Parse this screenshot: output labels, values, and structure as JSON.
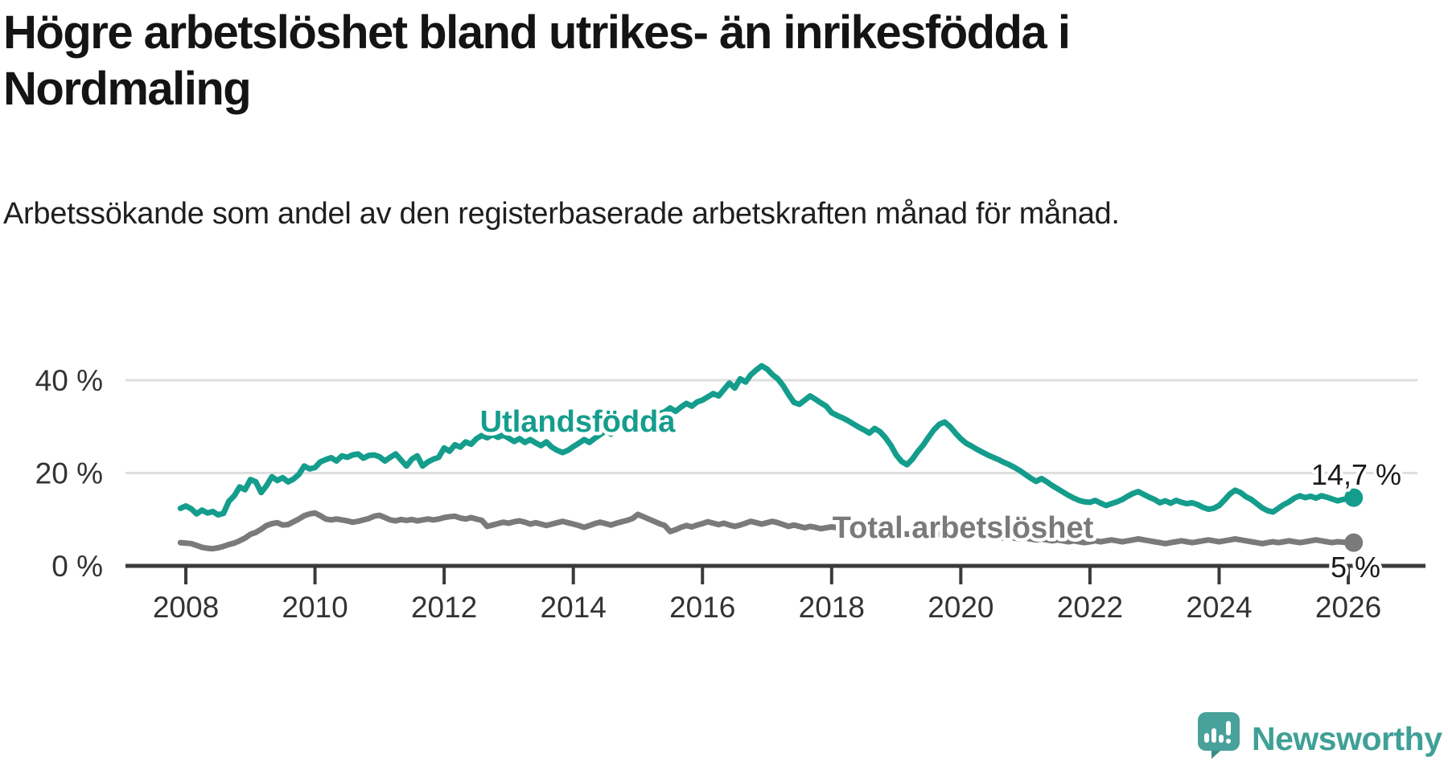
{
  "header": {
    "title": "Högre arbetslöshet bland utrikes- än inrikesfödda i Nordmaling",
    "subtitle": "Arbetssökande som andel av den registerbaserade arbetskraften månad för månad."
  },
  "colors": {
    "background": "#FFFFFF",
    "grid": "#DEDEDE",
    "axis": "#3A3A3A",
    "tick_label": "#333333",
    "value_label": "#1A1A1A",
    "teal": "#149D8C",
    "gray": "#7A7A7A",
    "logo": "#3FA096"
  },
  "branding": {
    "name": "Newsworthy"
  },
  "chart_data": {
    "type": "line",
    "unit": "%",
    "grid": "horizontal-only",
    "legend_position": "inline-labels",
    "x_axis": {
      "tick_years": [
        2008,
        2010,
        2012,
        2014,
        2016,
        2018,
        2020,
        2022,
        2024,
        2026
      ],
      "tick_labels": [
        "2008",
        "2010",
        "2012",
        "2014",
        "2016",
        "2018",
        "2020",
        "2022",
        "2024",
        "2026"
      ],
      "range_years": [
        2007.9,
        2026.2
      ]
    },
    "y_axis": {
      "ticks": [
        0,
        20,
        40
      ],
      "tick_labels": [
        "0 %",
        "20 %",
        "40 %"
      ],
      "gridline_values": [
        20,
        40
      ],
      "range": [
        0,
        45
      ]
    },
    "series": [
      {
        "id": "utlandsfodda",
        "label": "Utlandsfödda",
        "color": "#149D8C",
        "end_label": "14,7 %",
        "end_value": 14.7,
        "start": {
          "year": 2007,
          "month": 12
        },
        "interval_months": 1,
        "values": [
          12.4,
          12.9,
          12.3,
          11.2,
          12.0,
          11.4,
          11.7,
          11.0,
          11.3,
          13.9,
          15.1,
          17.0,
          16.4,
          18.6,
          18.1,
          15.8,
          17.3,
          19.2,
          18.4,
          19.0,
          18.1,
          18.7,
          19.7,
          21.5,
          20.9,
          21.2,
          22.4,
          22.9,
          23.3,
          22.6,
          23.7,
          23.4,
          23.9,
          24.1,
          23.2,
          23.8,
          23.9,
          23.5,
          22.6,
          23.4,
          24.1,
          22.8,
          21.5,
          23.0,
          23.7,
          21.5,
          22.4,
          23.0,
          23.4,
          25.4,
          24.7,
          26.1,
          25.6,
          26.7,
          26.2,
          27.4,
          28.1,
          27.6,
          28.3,
          27.7,
          28.2,
          27.5,
          26.8,
          27.4,
          26.6,
          27.2,
          26.5,
          25.9,
          26.7,
          25.6,
          24.9,
          24.4,
          24.9,
          25.7,
          26.4,
          27.2,
          26.6,
          27.5,
          28.3,
          29.1,
          28.4,
          29.3,
          30.1,
          30.8,
          30.2,
          31.0,
          31.8,
          32.5,
          31.9,
          32.8,
          33.2,
          34.0,
          33.3,
          34.2,
          35.0,
          34.4,
          35.3,
          35.7,
          36.4,
          37.1,
          36.6,
          38.0,
          39.4,
          38.3,
          40.3,
          39.6,
          41.2,
          42.2,
          43.1,
          42.4,
          41.2,
          40.3,
          38.8,
          36.9,
          35.2,
          34.8,
          35.7,
          36.6,
          35.9,
          35.1,
          34.4,
          33.0,
          32.4,
          31.9,
          31.3,
          30.6,
          29.9,
          29.3,
          28.6,
          29.6,
          28.9,
          27.6,
          26.0,
          23.9,
          22.5,
          21.8,
          23.0,
          24.6,
          26.0,
          27.7,
          29.3,
          30.5,
          31.0,
          30.0,
          28.6,
          27.4,
          26.4,
          25.8,
          25.1,
          24.5,
          23.9,
          23.4,
          22.9,
          22.3,
          21.8,
          21.2,
          20.5,
          19.7,
          18.9,
          18.2,
          18.8,
          18.1,
          17.3,
          16.6,
          15.9,
          15.2,
          14.6,
          14.1,
          13.8,
          13.7,
          14.1,
          13.5,
          13.0,
          13.4,
          13.8,
          14.3,
          15.0,
          15.6,
          16.0,
          15.4,
          14.8,
          14.3,
          13.6,
          14.0,
          13.5,
          14.1,
          13.7,
          13.4,
          13.6,
          13.2,
          12.6,
          12.2,
          12.4,
          13.0,
          14.2,
          15.5,
          16.3,
          15.8,
          14.9,
          14.3,
          13.4,
          12.5,
          11.9,
          11.6,
          12.4,
          13.2,
          13.8,
          14.6,
          15.1,
          14.7,
          15.0,
          14.6,
          15.1,
          14.8,
          14.4,
          14.0,
          14.3,
          14.5,
          14.7
        ]
      },
      {
        "id": "total",
        "label": "Total arbetslöshet",
        "color": "#7A7A7A",
        "end_label": "5 %",
        "end_value": 5.0,
        "start": {
          "year": 2007,
          "month": 12
        },
        "interval_months": 1,
        "values": [
          5.0,
          4.9,
          4.8,
          4.4,
          4.0,
          3.8,
          3.7,
          3.9,
          4.2,
          4.6,
          4.9,
          5.4,
          6.0,
          6.8,
          7.2,
          7.9,
          8.7,
          9.1,
          9.3,
          8.8,
          8.9,
          9.5,
          10.1,
          10.8,
          11.2,
          11.4,
          10.8,
          10.1,
          9.9,
          10.1,
          9.9,
          9.7,
          9.4,
          9.6,
          9.9,
          10.2,
          10.7,
          10.9,
          10.4,
          9.9,
          9.7,
          10.0,
          9.8,
          10.0,
          9.7,
          9.9,
          10.1,
          9.9,
          10.1,
          10.4,
          10.6,
          10.7,
          10.3,
          10.1,
          10.4,
          10.1,
          9.8,
          8.5,
          8.8,
          9.1,
          9.4,
          9.2,
          9.5,
          9.7,
          9.4,
          9.0,
          9.3,
          9.0,
          8.7,
          9.0,
          9.3,
          9.6,
          9.3,
          9.0,
          8.7,
          8.3,
          8.7,
          9.1,
          9.4,
          9.1,
          8.8,
          9.2,
          9.5,
          9.8,
          10.2,
          11.1,
          10.6,
          10.1,
          9.6,
          9.1,
          8.7,
          7.4,
          7.8,
          8.3,
          8.7,
          8.4,
          8.8,
          9.1,
          9.5,
          9.2,
          8.9,
          9.2,
          8.8,
          8.5,
          8.8,
          9.2,
          9.6,
          9.3,
          9.0,
          9.3,
          9.6,
          9.3,
          8.9,
          8.5,
          8.8,
          8.5,
          8.2,
          8.5,
          8.3,
          8.0,
          8.2,
          8.4,
          8.2,
          7.9,
          8.1,
          7.8,
          7.6,
          7.8,
          7.5,
          7.3,
          7.5,
          7.2,
          7.0,
          7.2,
          7.0,
          6.8,
          7.0,
          7.2,
          7.0,
          6.8,
          6.6,
          6.8,
          6.6,
          6.4,
          6.6,
          6.8,
          7.0,
          7.2,
          7.0,
          6.8,
          6.6,
          6.4,
          6.2,
          6.0,
          6.2,
          6.0,
          5.8,
          6.0,
          5.8,
          5.6,
          5.8,
          5.6,
          5.4,
          5.6,
          5.4,
          5.2,
          5.4,
          5.2,
          5.0,
          5.2,
          5.4,
          5.2,
          5.4,
          5.6,
          5.4,
          5.2,
          5.4,
          5.6,
          5.8,
          5.6,
          5.4,
          5.2,
          5.0,
          4.8,
          5.0,
          5.2,
          5.4,
          5.2,
          5.0,
          5.2,
          5.4,
          5.6,
          5.4,
          5.2,
          5.4,
          5.6,
          5.8,
          5.6,
          5.4,
          5.2,
          5.0,
          4.8,
          5.0,
          5.2,
          5.0,
          5.2,
          5.4,
          5.2,
          5.0,
          5.2,
          5.4,
          5.6,
          5.4,
          5.2,
          5.0,
          5.2,
          5.1,
          5.0,
          5.0
        ]
      }
    ]
  }
}
